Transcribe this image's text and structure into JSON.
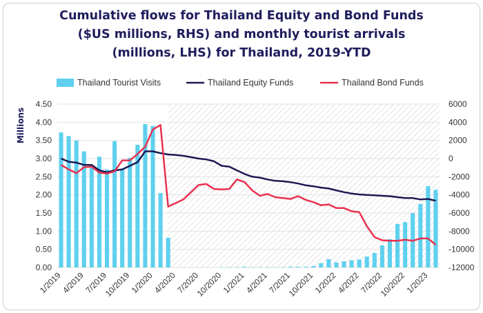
{
  "chart_data": {
    "type": "bar",
    "title_lines": [
      "Cumulative flows for Thailand Equity and Bond Funds",
      "($US millions, RHS) and monthly tourist arrivals",
      "(millions, LHS) for Thailand, 2019-YTD"
    ],
    "ylabel_left": "Millions",
    "ylim_left": [
      0,
      4.5
    ],
    "yticks_left": [
      "4.50",
      "4.00",
      "3.50",
      "3.00",
      "2.50",
      "2.00",
      "1.50",
      "1.00",
      "0.50",
      "0.00"
    ],
    "ylim_right": [
      -12000,
      6000
    ],
    "yticks_right": [
      "6000",
      "4000",
      "2000",
      "0",
      "-2000",
      "-4000",
      "-6000",
      "-8000",
      "-10000",
      "-12000"
    ],
    "x_tick_labels": [
      "1/2019",
      "4/2019",
      "7/2019",
      "10/2019",
      "1/2020",
      "4/2020",
      "7/2020",
      "10/2020",
      "1/2021",
      "4/2021",
      "7/2021",
      "10/2021",
      "1/2022",
      "4/2022",
      "7/2022",
      "10/2022",
      "1/2023"
    ],
    "legend_position": "top",
    "grid": "horizontal",
    "colors": {
      "tourist": "#5fd0ee",
      "equity": "#1b1953",
      "bond": "#e8304f",
      "hatch": "#c8c8c8"
    },
    "series": [
      {
        "name": "Thailand Tourist Visits",
        "kind": "bar",
        "axis": "left",
        "values": [
          3.72,
          3.62,
          3.5,
          3.2,
          2.75,
          3.05,
          2.7,
          3.48,
          2.72,
          3.02,
          3.38,
          3.95,
          3.9,
          2.05,
          0.82,
          0,
          0,
          0,
          0,
          0,
          0,
          0.01,
          0.01,
          0.01,
          0.02,
          0.01,
          0.01,
          0.01,
          0.01,
          0.01,
          0.02,
          0.02,
          0.02,
          0.04,
          0.12,
          0.23,
          0.14,
          0.17,
          0.2,
          0.22,
          0.3,
          0.4,
          0.61,
          0.78,
          1.2,
          1.25,
          1.5,
          1.75,
          2.24,
          2.14
        ]
      },
      {
        "name": "Thailand Equity Funds",
        "kind": "line",
        "axis": "right",
        "values": [
          0,
          -350,
          -450,
          -700,
          -700,
          -1300,
          -1500,
          -1300,
          -1200,
          -800,
          -400,
          800,
          800,
          600,
          450,
          400,
          300,
          150,
          0,
          -100,
          -300,
          -800,
          -900,
          -1300,
          -1700,
          -2000,
          -2100,
          -2300,
          -2450,
          -2500,
          -2600,
          -2750,
          -2950,
          -3050,
          -3200,
          -3300,
          -3500,
          -3700,
          -3850,
          -3950,
          -4000,
          -4050,
          -4100,
          -4150,
          -4250,
          -4350,
          -4350,
          -4500,
          -4450,
          -4650
        ]
      },
      {
        "name": "Thailand Bond Funds",
        "kind": "line",
        "axis": "right",
        "values": [
          -700,
          -1200,
          -1600,
          -950,
          -900,
          -1550,
          -1650,
          -1400,
          -200,
          -200,
          500,
          1300,
          3200,
          3700,
          -5300,
          -4900,
          -4500,
          -3700,
          -2900,
          -2800,
          -3350,
          -3400,
          -3350,
          -2300,
          -2600,
          -3500,
          -4100,
          -3900,
          -4250,
          -4350,
          -4450,
          -4150,
          -4550,
          -4800,
          -5150,
          -5050,
          -5450,
          -5450,
          -5800,
          -5900,
          -7450,
          -8650,
          -9000,
          -9050,
          -9050,
          -8950,
          -9050,
          -8800,
          -8800,
          -9500
        ]
      }
    ]
  }
}
